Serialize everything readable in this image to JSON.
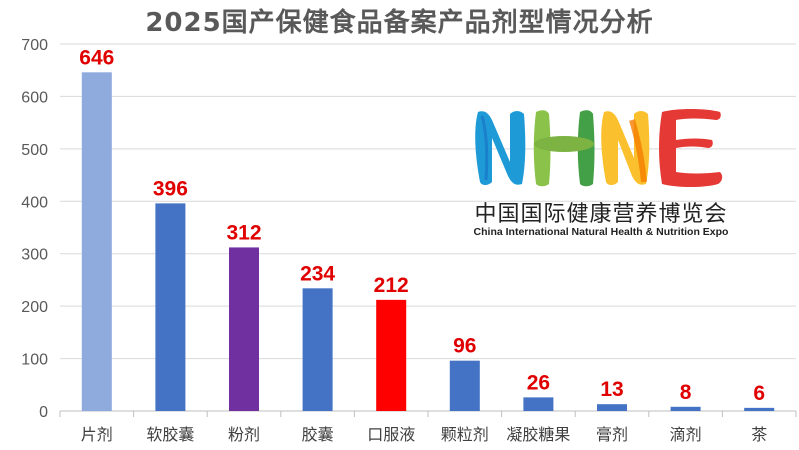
{
  "chart_data": {
    "type": "bar",
    "title": "2025国产保健食品备案产品剂型情况分析",
    "categories": [
      "片剂",
      "软胶囊",
      "粉剂",
      "胶囊",
      "口服液",
      "颗粒剂",
      "凝胶糖果",
      "膏剂",
      "滴剂",
      "茶"
    ],
    "values": [
      646,
      396,
      312,
      234,
      212,
      96,
      26,
      13,
      8,
      6
    ],
    "data_labels": [
      "646",
      "396",
      "312",
      "234",
      "212",
      "96",
      "26",
      "13",
      "8",
      "6"
    ],
    "bar_colors": [
      "#8FAADC",
      "#4472C4",
      "#7030A0",
      "#4472C4",
      "#FF0000",
      "#4472C4",
      "#4472C4",
      "#4472C4",
      "#4472C4",
      "#4472C4"
    ],
    "label_color": "#E00000",
    "ylim": [
      0,
      700
    ],
    "yticks": [
      "0",
      "100",
      "200",
      "300",
      "400",
      "500",
      "600",
      "700"
    ],
    "xlabel": "",
    "ylabel": "",
    "grid": true,
    "legend": "none"
  },
  "logo": {
    "mark_letters": "NHNE",
    "chinese_name": "中国国际健康营养博览会",
    "english_name": "China International Natural Health & Nutrition Expo"
  }
}
